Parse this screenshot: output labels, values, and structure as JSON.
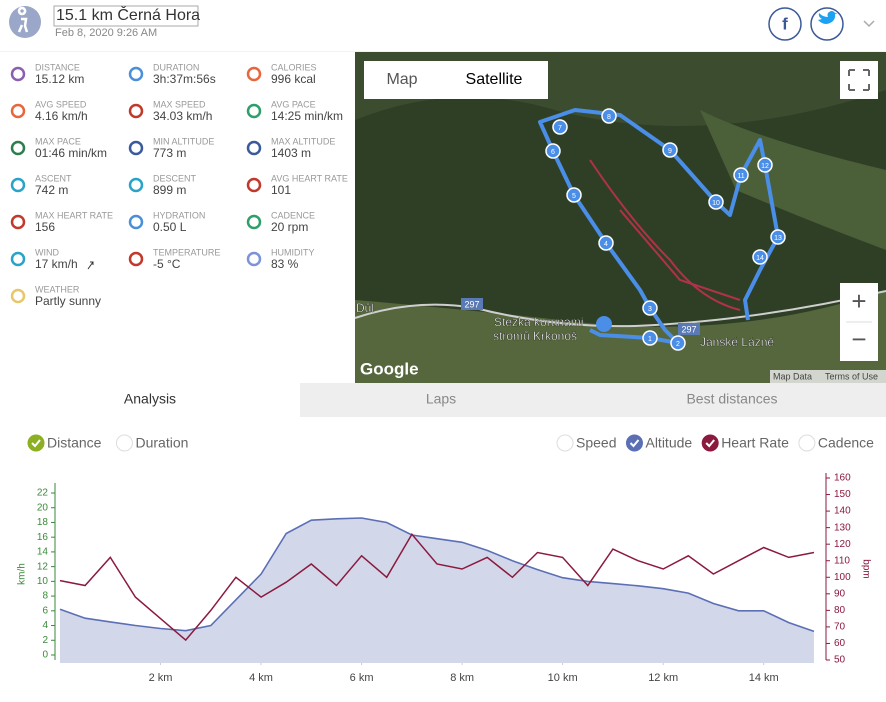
{
  "header": {
    "title": "15.1 km Černá Hora",
    "date": "Feb 8, 2020 9:26 AM"
  },
  "stats": [
    {
      "label": "DISTANCE",
      "value": "15.12 km"
    },
    {
      "label": "DURATION",
      "value": "3h:37m:56s"
    },
    {
      "label": "CALORIES",
      "value": "996 kcal"
    },
    {
      "label": "AVG SPEED",
      "value": "4.16 km/h"
    },
    {
      "label": "MAX SPEED",
      "value": "34.03 km/h"
    },
    {
      "label": "AVG PACE",
      "value": "14:25 min/km"
    },
    {
      "label": "MAX PACE",
      "value": "01:46 min/km"
    },
    {
      "label": "MIN ALTITUDE",
      "value": "773 m"
    },
    {
      "label": "MAX ALTITUDE",
      "value": "1403 m"
    },
    {
      "label": "ASCENT",
      "value": "742 m"
    },
    {
      "label": "DESCENT",
      "value": "899 m"
    },
    {
      "label": "AVG HEART RATE",
      "value": "101"
    },
    {
      "label": "MAX HEART RATE",
      "value": "156"
    },
    {
      "label": "HYDRATION",
      "value": "0.50 L"
    },
    {
      "label": "CADENCE",
      "value": "20 rpm"
    },
    {
      "label": "WIND",
      "value": "17 km/h"
    },
    {
      "label": "TEMPERATURE",
      "value": "-5 °C"
    },
    {
      "label": "HUMIDITY",
      "value": "83 %"
    },
    {
      "label": "WEATHER",
      "value": "Partly sunny"
    }
  ],
  "map": {
    "buttons": [
      "Map",
      "Satellite"
    ],
    "places": [
      "Stezka korunami",
      "stromů Krkonoš",
      "Janské Lázně",
      "Důl"
    ],
    "roads": [
      "297",
      "297"
    ],
    "waypoints": [
      "1",
      "2",
      "3",
      "4",
      "5",
      "6",
      "7",
      "8",
      "9",
      "10",
      "11",
      "12",
      "13",
      "14"
    ],
    "brand": "Google",
    "footer": [
      "Map Data",
      "Terms of Use"
    ],
    "zoom": [
      "+",
      "−"
    ]
  },
  "tabs": {
    "items": [
      "Analysis",
      "Laps",
      "Best distances"
    ],
    "active": 0
  },
  "chart_data": {
    "type": "line",
    "x_mode": {
      "options": [
        "Distance",
        "Duration"
      ],
      "selected": 0
    },
    "hidden_series": [
      "Speed",
      "Cadence"
    ],
    "ylabel": "km/h",
    "y2label": "bpm",
    "x": [
      0,
      0.5,
      1,
      1.5,
      2,
      2.5,
      3,
      3.5,
      4,
      4.5,
      5,
      5.5,
      6,
      6.5,
      7,
      7.5,
      8,
      8.5,
      9,
      9.5,
      10,
      10.5,
      11,
      11.5,
      12,
      12.5,
      13,
      13.5,
      14,
      14.5,
      15
    ],
    "series": [
      {
        "name": "Altitude",
        "color": "#5b6fb5",
        "values": [
          6.2,
          5.0,
          4.5,
          4.0,
          3.6,
          3.3,
          4.0,
          7.5,
          11,
          16.5,
          18.3,
          18.5,
          18.6,
          18.0,
          16.3,
          15.8,
          15.3,
          14.2,
          12.8,
          11.6,
          10.5,
          10.0,
          9.7,
          9.4,
          9.0,
          8.4,
          7.0,
          6.0,
          6.0,
          4.4,
          3.2
        ]
      },
      {
        "name": "Heart Rate",
        "color": "#8b1a3e",
        "axis": "y2",
        "values": [
          98,
          95,
          112,
          88,
          75,
          62,
          80,
          100,
          88,
          97,
          108,
          95,
          113,
          100,
          126,
          108,
          105,
          112,
          100,
          115,
          112,
          95,
          117,
          110,
          105,
          113,
          102,
          110,
          118,
          112,
          115
        ]
      }
    ],
    "xlim": [
      0,
      15.12
    ],
    "xticks": [
      {
        "value": 2,
        "label": "2 km"
      },
      {
        "value": 4,
        "label": "4 km"
      },
      {
        "value": 6,
        "label": "6 km"
      },
      {
        "value": 8,
        "label": "8 km"
      },
      {
        "value": 10,
        "label": "10 km"
      },
      {
        "value": 12,
        "label": "12 km"
      },
      {
        "value": 14,
        "label": "14 km"
      }
    ],
    "ylim": [
      0,
      22
    ],
    "yticks": [
      0,
      2,
      4,
      6,
      8,
      10,
      12,
      14,
      16,
      18,
      20,
      22
    ],
    "y2lim": [
      50,
      160
    ],
    "y2ticks": [
      50,
      60,
      70,
      80,
      90,
      100,
      110,
      120,
      130,
      140,
      150,
      160
    ]
  }
}
